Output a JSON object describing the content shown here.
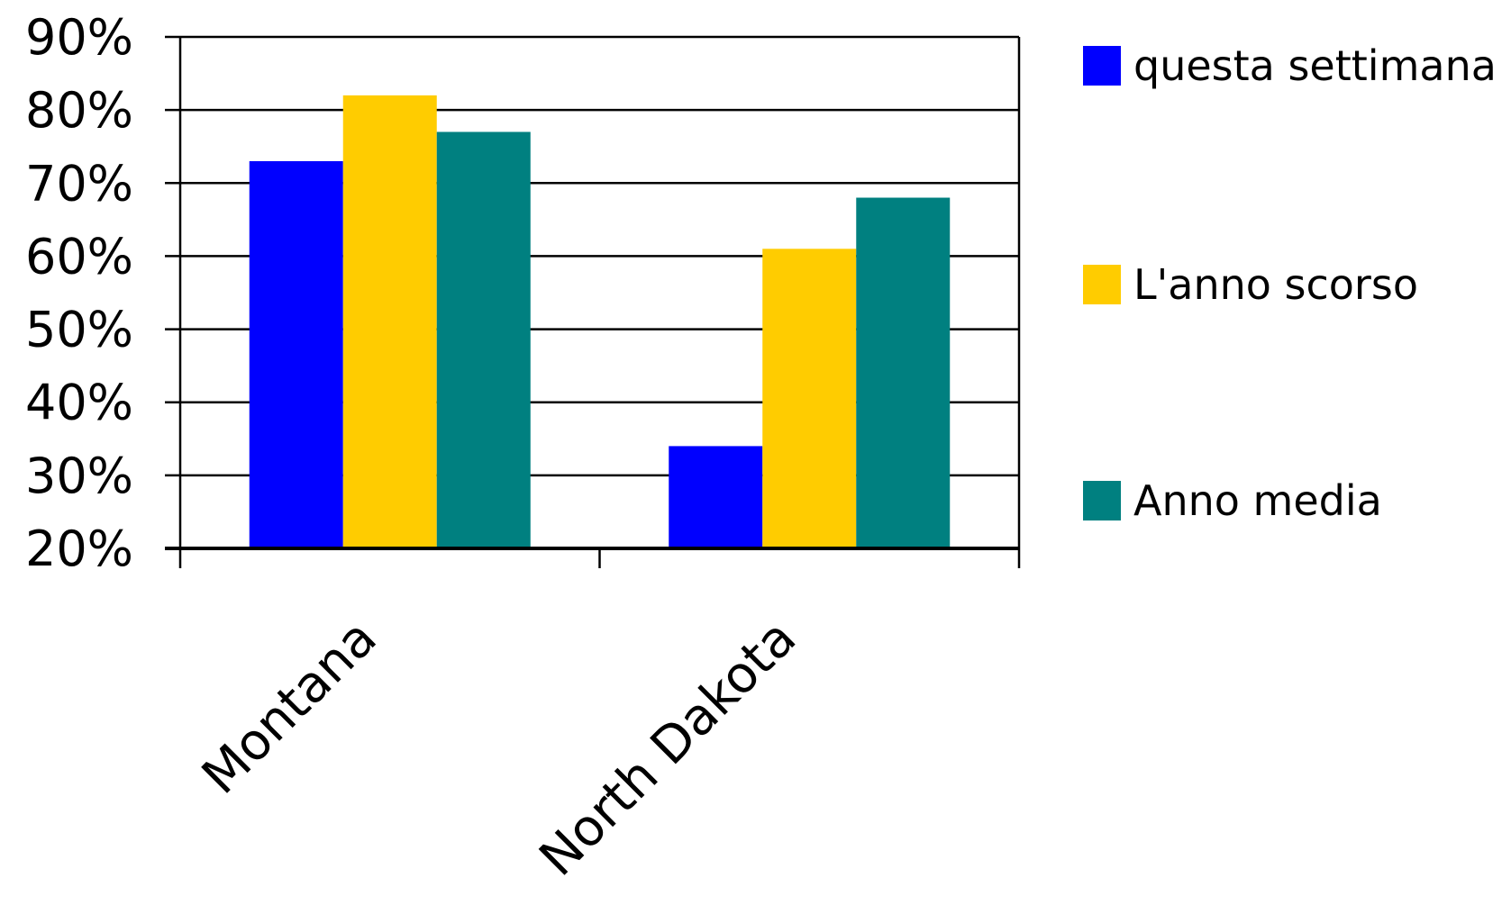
{
  "chart_data": {
    "type": "bar",
    "title": "",
    "xlabel": "",
    "ylabel": "",
    "categories": [
      "Montana",
      "North Dakota"
    ],
    "series": [
      {
        "name": "questa settimana",
        "color": "#0000FF",
        "values": [
          73,
          34
        ]
      },
      {
        "name": "L'anno scorso",
        "color": "#FFCC00",
        "values": [
          82,
          61
        ]
      },
      {
        "name": "Anno media",
        "color": "#008080",
        "values": [
          77,
          68
        ]
      }
    ],
    "ylim": [
      20,
      90
    ],
    "y_ticks": [
      20,
      30,
      40,
      50,
      60,
      70,
      80,
      90
    ],
    "y_tick_labels": [
      "20%",
      "30%",
      "40%",
      "50%",
      "60%",
      "70%",
      "80%",
      "90%"
    ],
    "grid": true,
    "legend": "right"
  }
}
